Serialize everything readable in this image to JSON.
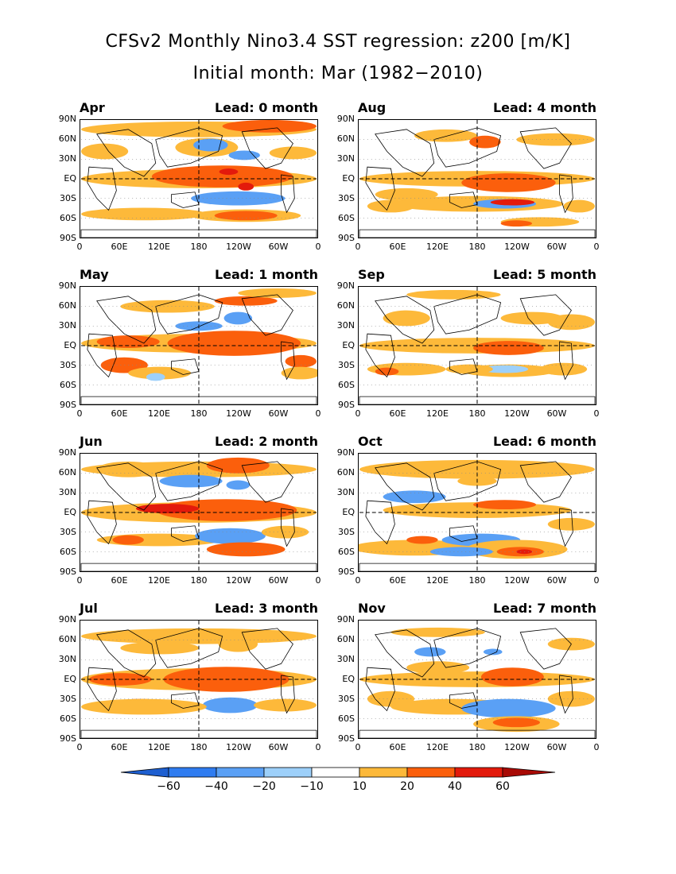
{
  "figure": {
    "title_line1": "CFSv2 Monthly Nino3.4 SST regression: z200 [m/K]",
    "title_line2": "Initial month: Mar (1982−2010)"
  },
  "axes": {
    "lat_labels": [
      "90N",
      "60N",
      "30N",
      "EQ",
      "30S",
      "60S",
      "90S"
    ],
    "lon_labels": [
      "0",
      "60E",
      "120E",
      "180",
      "120W",
      "60W",
      "0"
    ]
  },
  "panels": [
    {
      "month": "Apr",
      "lead": "Lead: 0 month"
    },
    {
      "month": "Aug",
      "lead": "Lead: 4 month"
    },
    {
      "month": "May",
      "lead": "Lead: 1 month"
    },
    {
      "month": "Sep",
      "lead": "Lead: 5 month"
    },
    {
      "month": "Jun",
      "lead": "Lead: 2 month"
    },
    {
      "month": "Oct",
      "lead": "Lead: 6 month"
    },
    {
      "month": "Jul",
      "lead": "Lead: 3 month"
    },
    {
      "month": "Nov",
      "lead": "Lead: 7 month"
    }
  ],
  "colorbar": {
    "labels": [
      "−60",
      "−40",
      "−20",
      "−10",
      "10",
      "20",
      "40",
      "60"
    ],
    "colors": [
      "#1e5fd0",
      "#2f7cf0",
      "#5aa0f5",
      "#9dd0fa",
      "#ffffff",
      "#fdb93a",
      "#fb5f0c",
      "#e31a0c",
      "#a80a05"
    ]
  }
}
